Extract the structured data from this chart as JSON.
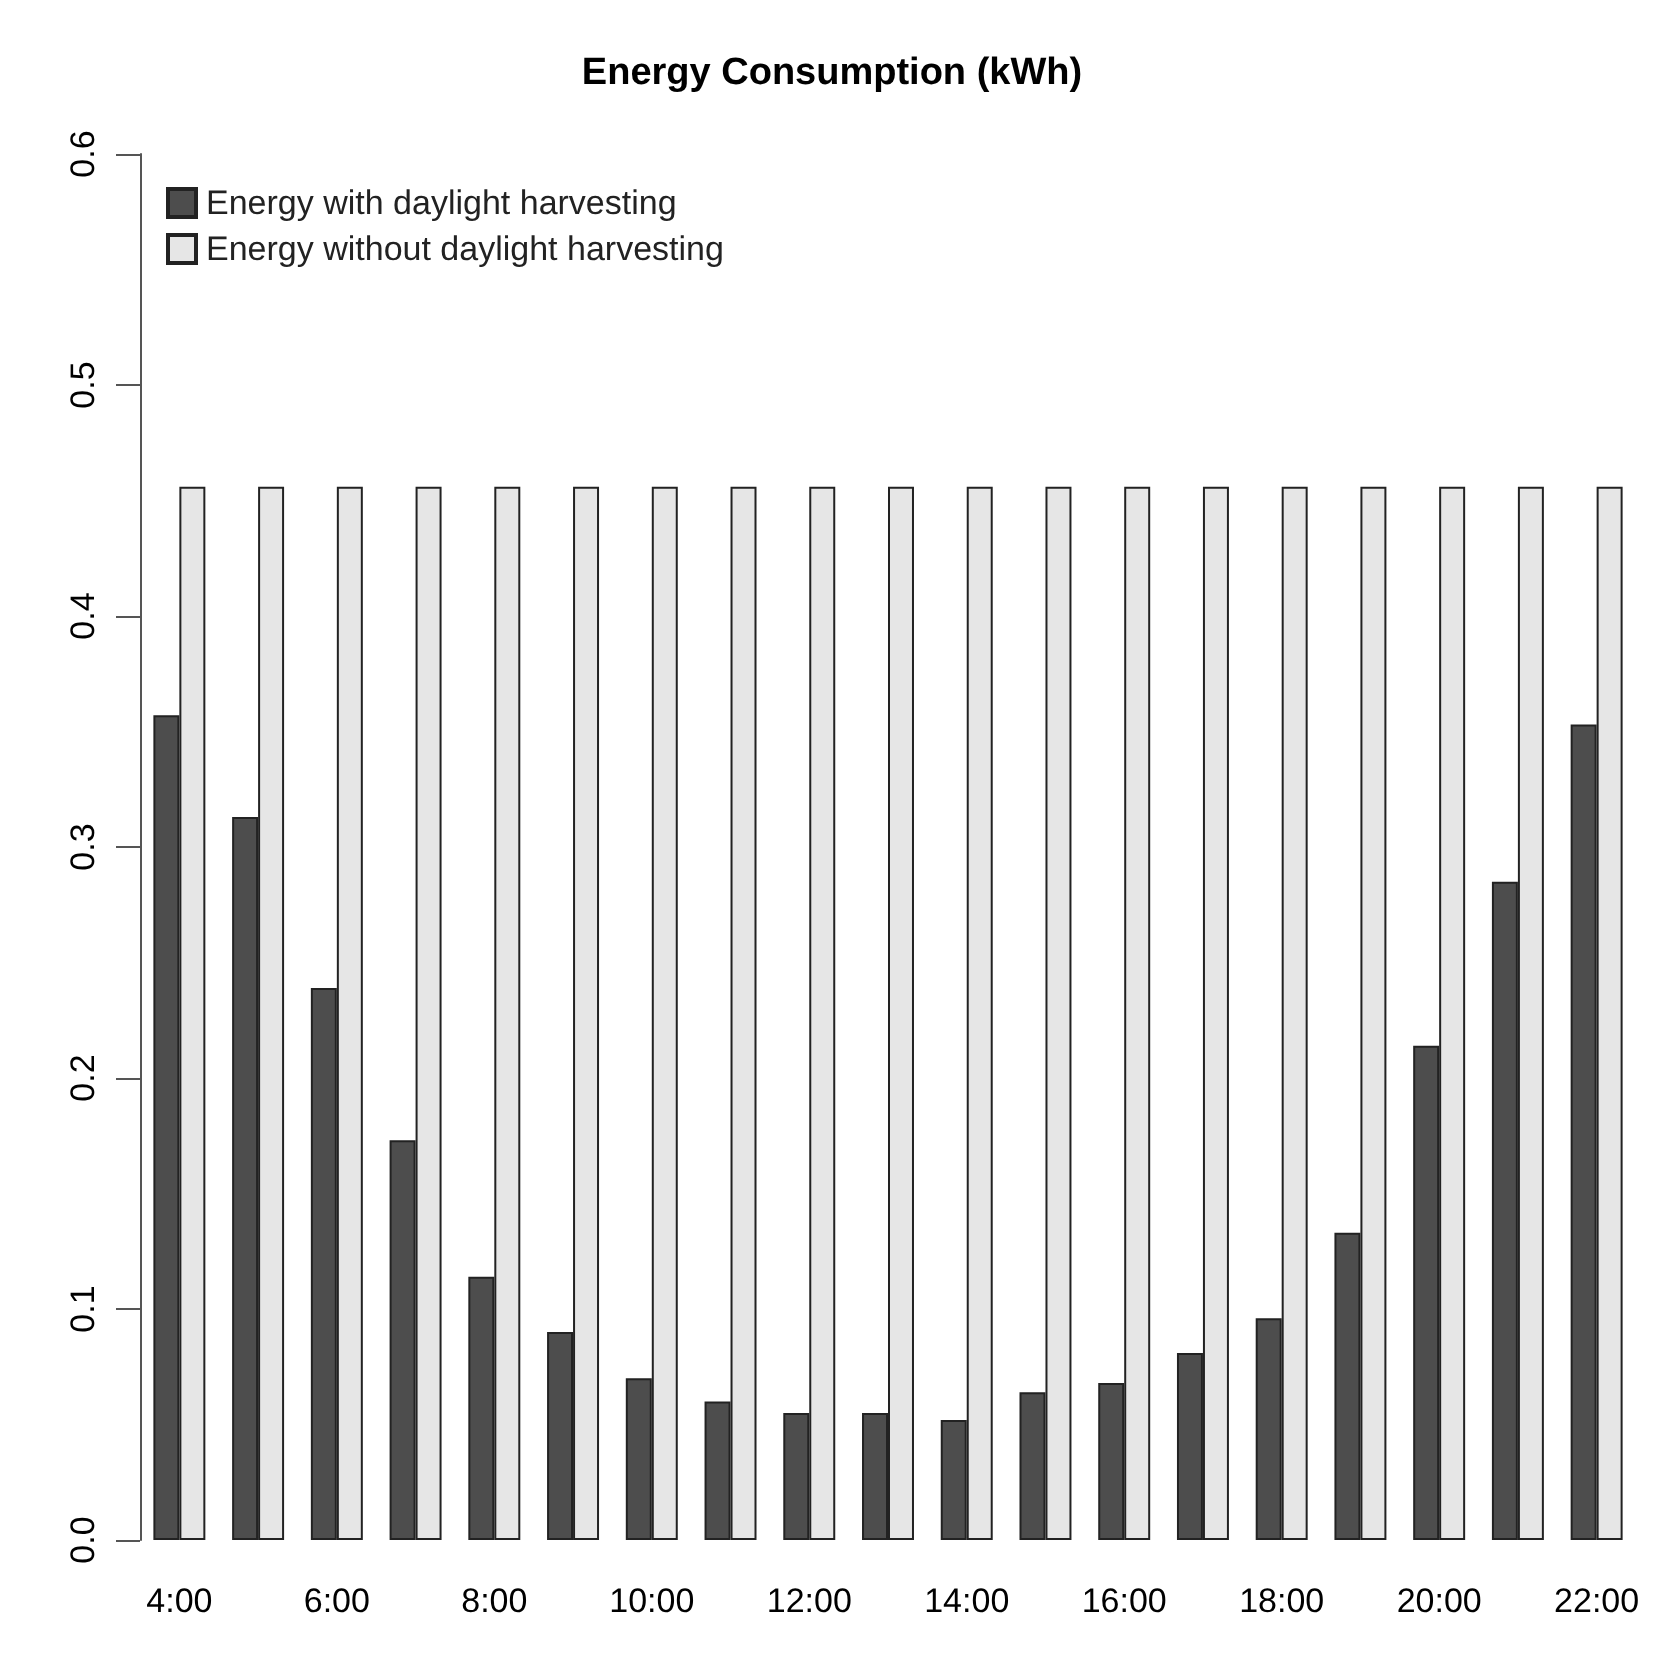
{
  "chart_data": {
    "type": "bar",
    "title": "Energy Consumption (kWh)",
    "categories": [
      "4:00",
      null,
      "6:00",
      null,
      "8:00",
      null,
      "10:00",
      null,
      "12:00",
      null,
      "14:00",
      null,
      "16:00",
      null,
      "18:00",
      null,
      "20:00",
      null,
      "22:00"
    ],
    "series": [
      {
        "name": "Energy with daylight harvesting",
        "color": "#4d4d4d",
        "values": [
          0.357,
          0.313,
          0.239,
          0.173,
          0.114,
          0.09,
          0.07,
          0.06,
          0.055,
          0.055,
          0.052,
          0.064,
          0.068,
          0.081,
          0.096,
          0.133,
          0.214,
          0.285,
          0.353
        ]
      },
      {
        "name": "Energy without daylight harvesting",
        "color": "#e6e6e6",
        "values": [
          0.456,
          0.456,
          0.456,
          0.456,
          0.456,
          0.456,
          0.456,
          0.456,
          0.456,
          0.456,
          0.456,
          0.456,
          0.456,
          0.456,
          0.456,
          0.456,
          0.456,
          0.456,
          0.456
        ]
      }
    ],
    "ylim": [
      0,
      0.6
    ],
    "yticks": [
      {
        "value": 0,
        "label": "0.0"
      },
      0.1,
      0.2,
      0.3,
      0.4,
      0.5,
      0.6
    ],
    "grid": false,
    "legend": "top left"
  }
}
